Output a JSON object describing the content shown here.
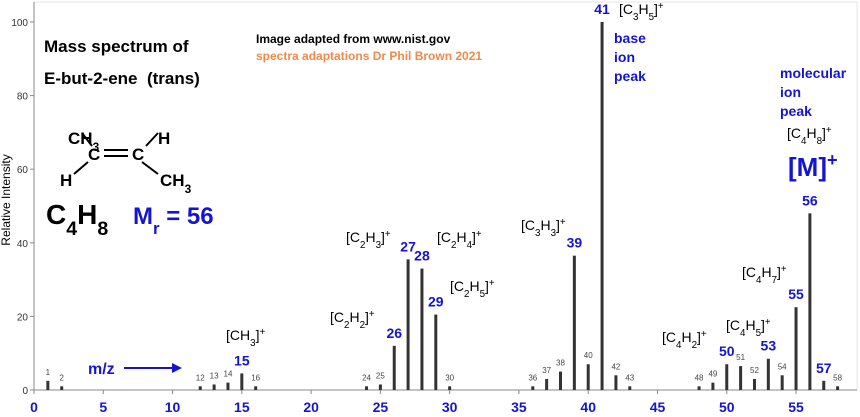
{
  "chart_data": {
    "type": "bar",
    "title": "Mass spectrum of",
    "subtitle": "E-but-2-ene  (trans)",
    "source": "Image adapted from www.nist.gov",
    "credit": "spectra adaptations Dr Phil Brown 2021",
    "y_label": "Relative Intensity",
    "x_label": "m/z",
    "structure": [
      "CH3",
      "H",
      "C",
      "C",
      "H",
      "CH3"
    ],
    "formula": "C4H8",
    "molar_mass": "Mr = 56",
    "base_peak_note": [
      "base",
      "ion",
      "peak"
    ],
    "molecular_peak_note": [
      "molecular",
      "ion",
      "peak"
    ],
    "molecular_ion": "[M]+",
    "annotations": [
      "[CH3]+",
      "[C2H2]+",
      "[C2H3]+",
      "[C2H4]+",
      "[C2H5]+",
      "[C3H3]+",
      "[C3H5]+",
      "[C4H2]+",
      "[C4H5]+",
      "[C4H7]+",
      "[C4H8]+"
    ],
    "x": [
      1,
      2,
      12,
      13,
      14,
      15,
      16,
      24,
      25,
      26,
      27,
      28,
      29,
      30,
      36,
      37,
      38,
      39,
      40,
      41,
      42,
      43,
      48,
      49,
      50,
      51,
      52,
      53,
      54,
      55,
      56,
      57,
      58
    ],
    "values": [
      2.5,
      1,
      1,
      1.5,
      2,
      4.5,
      1,
      1,
      1.5,
      12,
      35.5,
      33,
      20.5,
      1,
      1,
      3,
      5,
      36.5,
      7,
      100,
      4,
      1,
      1,
      2,
      7,
      6.5,
      3,
      8.5,
      4,
      22.5,
      48,
      2.5,
      1
    ],
    "highlight_x": [
      15,
      26,
      27,
      28,
      29,
      39,
      41,
      50,
      53,
      55,
      56,
      57
    ],
    "color": "#333333",
    "xlim": [
      0,
      59.4
    ],
    "ylim": [
      0,
      100
    ],
    "xticks": [
      0,
      5,
      10,
      15,
      20,
      25,
      30,
      35,
      40,
      45,
      50,
      55
    ],
    "yticks": [
      0,
      20,
      40,
      60,
      80,
      100
    ],
    "grid": false
  }
}
